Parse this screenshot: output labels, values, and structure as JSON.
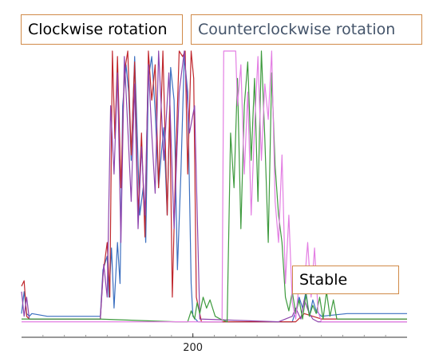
{
  "annotations": {
    "clockwise": "Clockwise rotation",
    "counterclockwise": "Counterclockwise rotation",
    "stable": "Stable"
  },
  "colors": {
    "box_border": "#d08a48",
    "axis": "#333333",
    "series": [
      "#3b6fc0",
      "#c0272d",
      "#8e44ad",
      "#3d9a3d",
      "#e37fe3"
    ]
  },
  "chart_data": {
    "type": "line",
    "title": "",
    "xlabel": "",
    "ylabel": "",
    "xlim": [
      0,
      450
    ],
    "ylim": [
      0,
      100
    ],
    "x_ticks": [
      200
    ],
    "x_tick_labels": [
      "200"
    ],
    "grid": false,
    "legend": "none",
    "series": [
      {
        "color": "#3b6fc0",
        "x": [
          0,
          3,
          6,
          9,
          12,
          30,
          60,
          90,
          92,
          95,
          100,
          102,
          105,
          108,
          112,
          115,
          118,
          122,
          125,
          128,
          132,
          135,
          138,
          142,
          145,
          148,
          152,
          156,
          160,
          163,
          166,
          170,
          174,
          178,
          182,
          186,
          190,
          194,
          198,
          200,
          203,
          206,
          210,
          220,
          230,
          240,
          250,
          260,
          280,
          300,
          316,
          320,
          324,
          328,
          332,
          336,
          340,
          344,
          350,
          380,
          420,
          450
        ],
        "y": [
          4,
          12,
          4,
          3,
          4,
          3,
          3,
          3,
          3,
          20,
          25,
          10,
          28,
          6,
          30,
          15,
          80,
          95,
          85,
          60,
          98,
          70,
          40,
          50,
          30,
          90,
          98,
          78,
          50,
          62,
          72,
          40,
          94,
          82,
          20,
          55,
          98,
          85,
          15,
          3,
          2,
          1,
          1,
          1,
          1,
          1,
          1,
          1,
          1,
          1,
          1,
          5,
          10,
          6,
          12,
          3,
          9,
          5,
          3,
          4,
          4,
          4
        ]
      },
      {
        "color": "#c0272d",
        "x": [
          0,
          3,
          6,
          9,
          12,
          30,
          60,
          90,
          92,
          95,
          100,
          103,
          106,
          109,
          112,
          116,
          120,
          124,
          128,
          132,
          136,
          140,
          144,
          148,
          152,
          156,
          160,
          165,
          170,
          173,
          176,
          180,
          184,
          188,
          191,
          194,
          198,
          201,
          204,
          210,
          230,
          260,
          300,
          320,
          330,
          350,
          380,
          420,
          450
        ],
        "y": [
          14,
          16,
          3,
          2,
          2,
          2,
          2,
          2,
          2,
          18,
          30,
          10,
          100,
          68,
          98,
          50,
          92,
          100,
          62,
          96,
          40,
          70,
          32,
          100,
          82,
          95,
          50,
          100,
          40,
          80,
          10,
          60,
          100,
          98,
          100,
          55,
          100,
          90,
          10,
          1,
          1,
          1,
          1,
          1,
          4,
          2,
          2,
          2,
          2
        ]
      },
      {
        "color": "#8e44ad",
        "x": [
          0,
          3,
          6,
          9,
          60,
          92,
          96,
          100,
          104,
          108,
          112,
          116,
          120,
          124,
          128,
          132,
          136,
          140,
          144,
          148,
          152,
          156,
          160,
          166,
          172,
          178,
          184,
          190,
          196,
          202,
          208,
          300,
          316,
          320,
          326,
          330,
          336,
          340,
          346,
          360,
          450
        ],
        "y": [
          12,
          3,
          10,
          2,
          2,
          2,
          22,
          10,
          80,
          55,
          92,
          30,
          98,
          72,
          45,
          88,
          35,
          65,
          40,
          95,
          70,
          48,
          100,
          60,
          92,
          35,
          85,
          100,
          70,
          80,
          2,
          1,
          3,
          6,
          2,
          9,
          4,
          2,
          1,
          1,
          1
        ]
      },
      {
        "color": "#3d9a3d",
        "x": [
          0,
          20,
          60,
          90,
          180,
          194,
          198,
          202,
          205,
          208,
          212,
          216,
          220,
          226,
          232,
          240,
          244,
          248,
          252,
          256,
          260,
          264,
          268,
          272,
          276,
          280,
          284,
          288,
          292,
          296,
          300,
          304,
          308,
          312,
          316,
          320,
          324,
          328,
          332,
          336,
          340,
          344,
          348,
          352,
          356,
          360,
          364,
          368,
          372,
          376,
          380,
          450
        ],
        "y": [
          2,
          2,
          2,
          2,
          1,
          1,
          5,
          2,
          8,
          4,
          10,
          6,
          9,
          3,
          2,
          1,
          70,
          50,
          90,
          35,
          80,
          96,
          60,
          90,
          45,
          100,
          68,
          30,
          92,
          58,
          40,
          30,
          10,
          5,
          12,
          4,
          9,
          2,
          11,
          3,
          7,
          4,
          10,
          2,
          12,
          3,
          9,
          2,
          2,
          2,
          2,
          2
        ]
      },
      {
        "color": "#e37fe3",
        "x": [
          0,
          60,
          90,
          180,
          220,
          234,
          236,
          250,
          252,
          256,
          260,
          264,
          268,
          272,
          276,
          280,
          284,
          288,
          292,
          296,
          300,
          304,
          308,
          312,
          316,
          320,
          323,
          326,
          330,
          334,
          338,
          342,
          346,
          350,
          360,
          450
        ],
        "y": [
          1,
          1,
          1,
          1,
          1,
          1,
          100,
          100,
          80,
          95,
          55,
          85,
          40,
          72,
          98,
          60,
          88,
          75,
          100,
          45,
          30,
          62,
          15,
          40,
          8,
          2,
          12,
          20,
          14,
          30,
          10,
          28,
          5,
          1,
          1,
          1
        ]
      }
    ]
  }
}
